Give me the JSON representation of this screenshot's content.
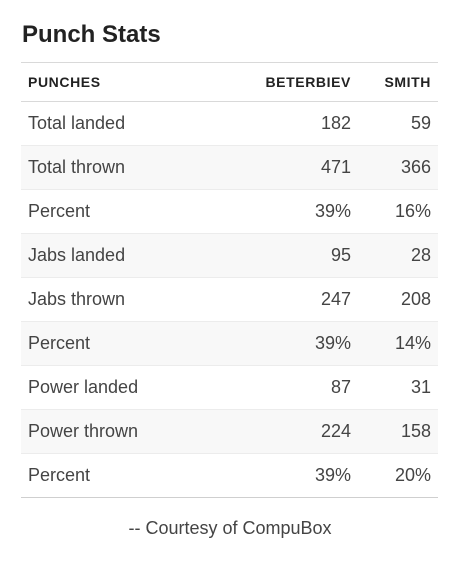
{
  "title": "Punch Stats",
  "table": {
    "headers": [
      "PUNCHES",
      "BETERBIEV",
      "SMITH"
    ],
    "rows": [
      [
        "Total landed",
        "182",
        "59"
      ],
      [
        "Total thrown",
        "471",
        "366"
      ],
      [
        "Percent",
        "39%",
        "16%"
      ],
      [
        "Jabs landed",
        "95",
        "28"
      ],
      [
        "Jabs thrown",
        "247",
        "208"
      ],
      [
        "Percent",
        "39%",
        "14%"
      ],
      [
        "Power landed",
        "87",
        "31"
      ],
      [
        "Power thrown",
        "224",
        "158"
      ],
      [
        "Percent",
        "39%",
        "20%"
      ]
    ]
  },
  "credit": "-- Courtesy of CompuBox"
}
